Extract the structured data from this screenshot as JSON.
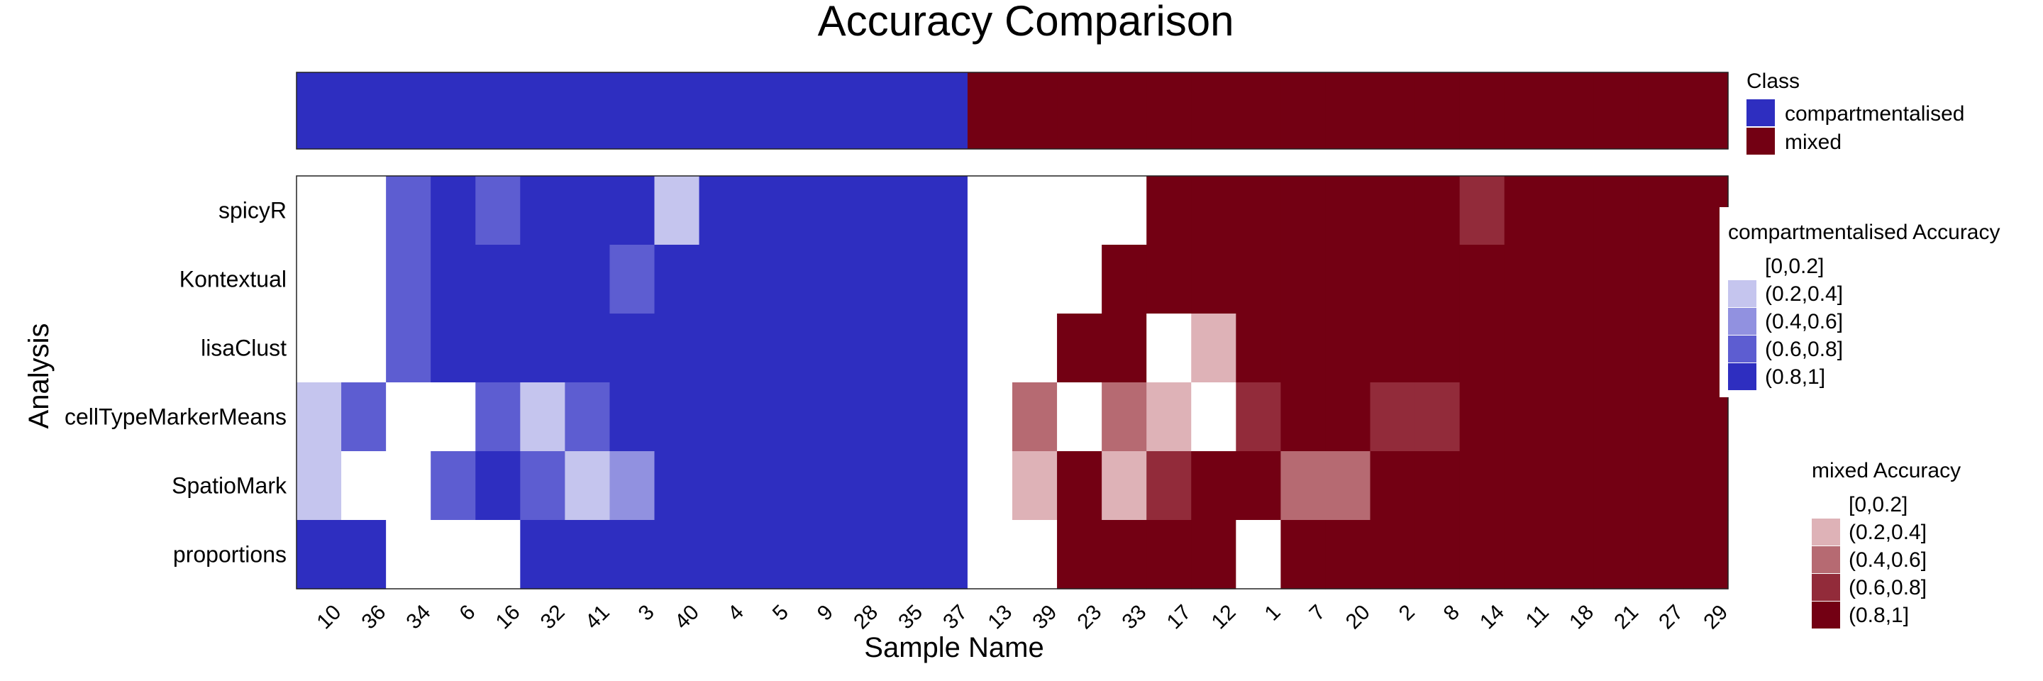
{
  "chart_data": {
    "type": "heatmap",
    "title": "Accuracy Comparison",
    "xlabel": "Sample Name",
    "ylabel": "Analysis",
    "samples": [
      "10",
      "36",
      "34",
      "6",
      "16",
      "32",
      "41",
      "3",
      "40",
      "4",
      "5",
      "9",
      "28",
      "35",
      "37",
      "13",
      "39",
      "23",
      "33",
      "17",
      "12",
      "1",
      "7",
      "20",
      "2",
      "8",
      "14",
      "11",
      "18",
      "21",
      "27",
      "29"
    ],
    "analyses": [
      "spicyR",
      "Kontextual",
      "lisaClust",
      "cellTypeMarkerMeans",
      "SpatioMark",
      "proportions"
    ],
    "class_legend": {
      "title": "Class",
      "entries": [
        {
          "label": "compartmentalised",
          "color": "#2E2EC0"
        },
        {
          "label": "mixed",
          "color": "#730013"
        }
      ]
    },
    "sample_class": [
      "compartmentalised",
      "compartmentalised",
      "compartmentalised",
      "compartmentalised",
      "compartmentalised",
      "compartmentalised",
      "compartmentalised",
      "compartmentalised",
      "compartmentalised",
      "compartmentalised",
      "compartmentalised",
      "compartmentalised",
      "compartmentalised",
      "compartmentalised",
      "compartmentalised",
      "mixed",
      "mixed",
      "mixed",
      "mixed",
      "mixed",
      "mixed",
      "mixed",
      "mixed",
      "mixed",
      "mixed",
      "mixed",
      "mixed",
      "mixed",
      "mixed",
      "mixed",
      "mixed",
      "mixed"
    ],
    "accuracy_bins": [
      "[0,0.2]",
      "(0.2,0.4]",
      "(0.4,0.6]",
      "(0.6,0.8]",
      "(0.8,1]"
    ],
    "accuracy_legends": [
      {
        "title": "compartmentalised Accuracy",
        "class": "compartmentalised",
        "colors": [
          "#FFFFFF",
          "#C5C5EE",
          "#9191E0",
          "#5D5DD1",
          "#2E2EC0"
        ]
      },
      {
        "title": "mixed Accuracy",
        "class": "mixed",
        "colors": [
          "#FFFFFF",
          "#DEB2B7",
          "#B66A72",
          "#922B3A",
          "#730013"
        ]
      }
    ],
    "matrix_bins": [
      [
        0,
        0,
        3,
        4,
        3,
        4,
        4,
        4,
        1,
        4,
        4,
        4,
        4,
        4,
        4,
        0,
        0,
        0,
        0,
        4,
        4,
        4,
        4,
        4,
        4,
        4,
        3,
        4,
        4,
        4,
        4,
        4
      ],
      [
        0,
        0,
        3,
        4,
        4,
        4,
        4,
        3,
        4,
        4,
        4,
        4,
        4,
        4,
        4,
        0,
        0,
        0,
        4,
        4,
        4,
        4,
        4,
        4,
        4,
        4,
        4,
        4,
        4,
        4,
        4,
        4
      ],
      [
        0,
        0,
        3,
        4,
        4,
        4,
        4,
        4,
        4,
        4,
        4,
        4,
        4,
        4,
        4,
        0,
        0,
        4,
        4,
        0,
        1,
        4,
        4,
        4,
        4,
        4,
        4,
        4,
        4,
        4,
        4,
        4
      ],
      [
        1,
        3,
        0,
        0,
        3,
        1,
        3,
        4,
        4,
        4,
        4,
        4,
        4,
        4,
        4,
        0,
        2,
        0,
        2,
        1,
        0,
        3,
        4,
        4,
        3,
        3,
        4,
        4,
        4,
        4,
        4,
        4
      ],
      [
        1,
        0,
        0,
        3,
        4,
        3,
        1,
        2,
        4,
        4,
        4,
        4,
        4,
        4,
        4,
        0,
        1,
        4,
        1,
        3,
        4,
        4,
        2,
        2,
        4,
        4,
        4,
        4,
        4,
        4,
        4,
        4
      ],
      [
        4,
        4,
        0,
        0,
        0,
        4,
        4,
        4,
        4,
        4,
        4,
        4,
        4,
        4,
        4,
        0,
        0,
        4,
        4,
        4,
        4,
        0,
        4,
        4,
        4,
        4,
        4,
        4,
        4,
        4,
        4,
        4
      ]
    ]
  }
}
